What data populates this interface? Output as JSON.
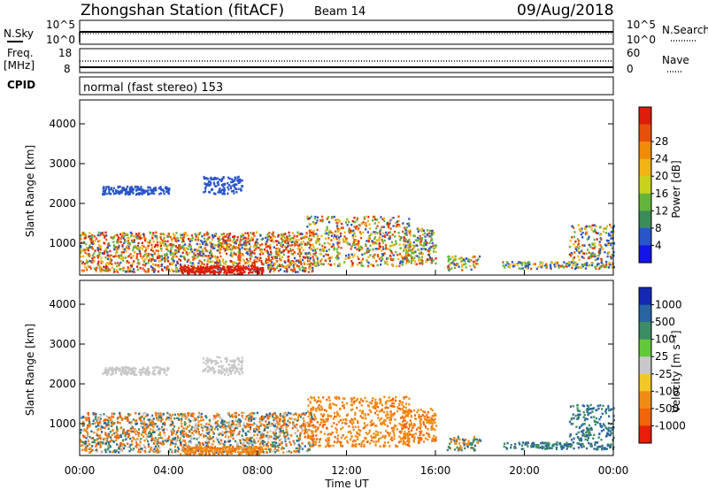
{
  "header": {
    "station": "Zhongshan Station (fitACF)",
    "beam": "Beam 14",
    "date": "09/Aug/2018"
  },
  "noise_panel": {
    "left_label": "N.Sky",
    "right_label": "N.Search",
    "yticks_left": [
      "10^5",
      "10^0"
    ],
    "yticks_right": [
      "10^5",
      "10^0"
    ]
  },
  "freq_panel": {
    "left_label_1": "Freq.",
    "left_label_2": "[MHz]",
    "right_label": "Nave",
    "yticks_left": [
      "18",
      "8"
    ],
    "yticks_right": [
      "60",
      "0"
    ]
  },
  "cpid": {
    "label": "CPID",
    "text": "normal (fast stereo) 153"
  },
  "chart_data": [
    {
      "type": "heatmap",
      "name": "Power",
      "ylabel": "Slant Range [km]",
      "yticks": [
        "1000",
        "2000",
        "3000",
        "4000"
      ],
      "ylim": [
        200,
        4600
      ],
      "x_ticks": [
        "00:00",
        "04:00",
        "08:00",
        "12:00",
        "16:00",
        "20:00",
        "00:00"
      ],
      "colorbar": {
        "label": "Power [dB]",
        "ticks": [
          "4",
          "8",
          "12",
          "16",
          "20",
          "24",
          "28"
        ],
        "colors": [
          "#1414e6",
          "#2855c8",
          "#3c8c5a",
          "#64b43c",
          "#c8d21e",
          "#f0b414",
          "#f08c0a",
          "#e6500a",
          "#dc1e0a"
        ]
      }
    },
    {
      "type": "heatmap",
      "name": "Velocity",
      "ylabel": "Slant Range [km]",
      "yticks": [
        "1000",
        "2000",
        "3000",
        "4000"
      ],
      "ylim": [
        200,
        4600
      ],
      "x_ticks": [
        "00:00",
        "04:00",
        "08:00",
        "12:00",
        "16:00",
        "20:00",
        "00:00"
      ],
      "xlabel": "Time UT",
      "colorbar": {
        "label": "Velocity [m s⁻¹]",
        "ticks": [
          "1000",
          "500",
          "100",
          "25",
          "-25",
          "-100",
          "-500",
          "-1000"
        ],
        "colors": [
          "#1428b4",
          "#2864a0",
          "#3c8c64",
          "#64c83c",
          "#c8c8c8",
          "#f0c828",
          "#f08c14",
          "#f0640a",
          "#e61e0a"
        ]
      }
    }
  ]
}
